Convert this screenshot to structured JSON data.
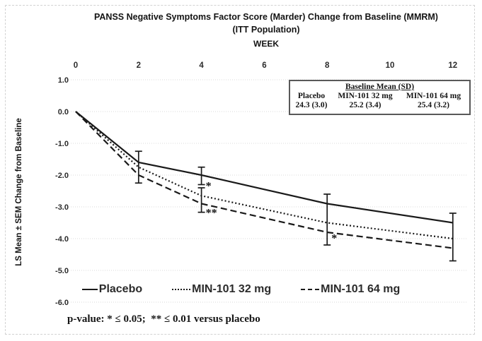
{
  "chart_data": {
    "type": "line",
    "title": "PANSS Negative Symptoms Factor Score (Marder) Change from Baseline (MMRM)",
    "subtitle": "(ITT Population)",
    "xlabel": "WEEK",
    "ylabel": "LS Mean ± SEM Change from Baseline",
    "grid": true,
    "legend_position": "bottom",
    "line_color": "#1a1a1a",
    "gridline_color": "#d9d9d9",
    "x_axis": {
      "position": "top",
      "range": [
        0,
        12
      ],
      "ticks": [
        0,
        2,
        4,
        6,
        8,
        10,
        12
      ],
      "tick_labels": [
        "0",
        "2",
        "4",
        "6",
        "8",
        "10",
        "12"
      ]
    },
    "y_axis": {
      "range": [
        -6.0,
        1.0
      ],
      "ticks": [
        1,
        0,
        -1,
        -2,
        -3,
        -4,
        -5,
        -6
      ],
      "tick_labels": [
        "1.0",
        "0.0",
        "-1.0",
        "-2.0",
        "-3.0",
        "-4.0",
        "-5.0",
        "-6.0"
      ]
    },
    "x": [
      0,
      2,
      4,
      8,
      12
    ],
    "series": [
      {
        "name": "Placebo",
        "line_style": "solid",
        "values": [
          0.0,
          -1.6,
          -2.0,
          -2.9,
          -3.5
        ]
      },
      {
        "name": "MIN-101 32 mg",
        "line_style": "dotted",
        "values": [
          0.0,
          -1.75,
          -2.65,
          -3.5,
          -4.0
        ]
      },
      {
        "name": "MIN-101 64 mg",
        "line_style": "dashed",
        "values": [
          0.0,
          -2.0,
          -2.9,
          -3.8,
          -4.3
        ]
      }
    ],
    "error_bars": [
      {
        "week": 2,
        "high": -1.25,
        "low": -2.25
      },
      {
        "week": 4,
        "high": -1.75,
        "low": -2.3
      },
      {
        "week": 4,
        "high": -2.4,
        "low": -3.17
      },
      {
        "week": 8,
        "high": -2.6,
        "low": -4.2
      },
      {
        "week": 12,
        "high": -3.2,
        "low": -4.7
      }
    ],
    "annotations": [
      {
        "week": 4,
        "value": -2.45,
        "text": "*"
      },
      {
        "week": 4,
        "value": -3.3,
        "text": "**"
      },
      {
        "week": 8,
        "value": -4.1,
        "text": "*"
      }
    ],
    "inset_table": {
      "title": "Baseline Mean (SD)",
      "columns": [
        "Placebo",
        "MIN-101 32 mg",
        "MIN-101 64 mg"
      ],
      "values": [
        "24.3 (3.0)",
        "25.2 (3.4)",
        "25.4 (3.2)"
      ]
    },
    "footnote": "p-value: * ≤ 0.05;  ** ≤ 0.01 versus placebo"
  }
}
